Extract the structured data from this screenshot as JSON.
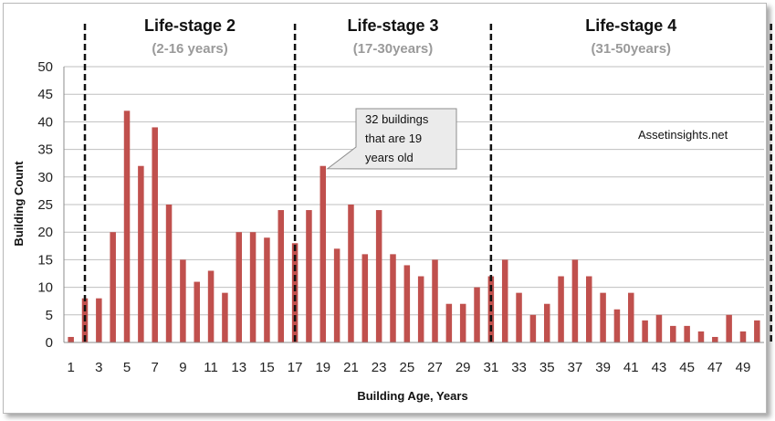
{
  "chart_data": {
    "type": "bar",
    "xlabel": "Building Age, Years",
    "ylabel": "Building Count",
    "ylim": [
      0,
      50
    ],
    "yticks": [
      0,
      5,
      10,
      15,
      20,
      25,
      30,
      35,
      40,
      45,
      50
    ],
    "xticks": [
      1,
      3,
      5,
      7,
      9,
      11,
      13,
      15,
      17,
      19,
      21,
      23,
      25,
      27,
      29,
      31,
      33,
      35,
      37,
      39,
      41,
      43,
      45,
      47,
      49
    ],
    "x": [
      1,
      2,
      3,
      4,
      5,
      6,
      7,
      8,
      9,
      10,
      11,
      12,
      13,
      14,
      15,
      16,
      17,
      18,
      19,
      20,
      21,
      22,
      23,
      24,
      25,
      26,
      27,
      28,
      29,
      30,
      31,
      32,
      33,
      34,
      35,
      36,
      37,
      38,
      39,
      40,
      41,
      42,
      43,
      44,
      45,
      46,
      47,
      48,
      49,
      50
    ],
    "values": [
      1,
      8,
      8,
      20,
      42,
      32,
      39,
      25,
      15,
      11,
      13,
      9,
      20,
      20,
      19,
      24,
      18,
      24,
      32,
      17,
      25,
      16,
      24,
      16,
      14,
      12,
      15,
      7,
      7,
      10,
      12,
      15,
      9,
      5,
      7,
      12,
      15,
      12,
      9,
      6,
      9,
      4,
      5,
      3,
      3,
      2,
      1,
      5,
      2,
      4
    ],
    "bar_color": "#c0504d",
    "grid": true,
    "stages": [
      {
        "title": "Life-stage 2",
        "subtitle": "(2-16 years)"
      },
      {
        "title": "Life-stage 3",
        "subtitle": "(17-30years)"
      },
      {
        "title": "Life-stage 4",
        "subtitle": "(31-50years)"
      }
    ],
    "stage_boundaries": [
      1.5,
      16.5,
      30.5,
      50.5
    ],
    "annotation": {
      "x": 19,
      "lines": [
        "32 buildings",
        "that are 19",
        "years old"
      ]
    },
    "watermark": "Assetinsights.net"
  }
}
